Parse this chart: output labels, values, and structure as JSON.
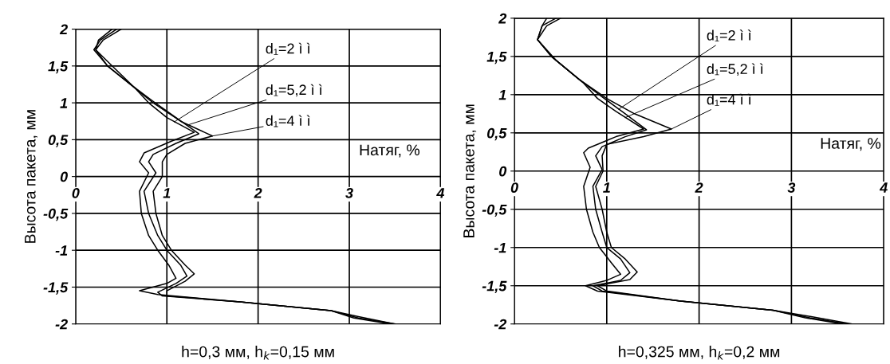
{
  "chart_data": [
    {
      "type": "line",
      "xlabel": "Натяг, %",
      "ylabel": "Высота пакета, мм",
      "xlim": [
        0,
        4
      ],
      "xticks": [
        0,
        1,
        2,
        3,
        4
      ],
      "ylim": [
        -2,
        2
      ],
      "yticks": [
        {
          "value": -2,
          "label": "-2"
        },
        {
          "value": -1.5,
          "label": "-1,5"
        },
        {
          "value": -1,
          "label": "-1"
        },
        {
          "value": -0.5,
          "label": "-0,5"
        },
        {
          "value": 0,
          "label": "0"
        },
        {
          "value": 0.5,
          "label": "0,5"
        },
        {
          "value": 1,
          "label": "1"
        },
        {
          "value": 1.5,
          "label": "1,5"
        },
        {
          "value": 2,
          "label": "2"
        }
      ],
      "grid": true,
      "marker": "none",
      "line_style": "solid",
      "series": [
        {
          "color": "#000000",
          "x": [
            0.5,
            0.3,
            0.22,
            0.35,
            0.6,
            0.85,
            1.15,
            1.5,
            1.2,
            1.0,
            0.95,
            0.95,
            0.85,
            0.88,
            0.95,
            1.05,
            1.2,
            1.3,
            1.2,
            1.0,
            1.0,
            1.8,
            2.8,
            3.1,
            3.5
          ],
          "values": [
            2,
            1.85,
            1.72,
            1.5,
            1.25,
            1.0,
            0.75,
            0.55,
            0.45,
            0.3,
            0.2,
            0.0,
            -0.2,
            -0.5,
            -0.8,
            -1.0,
            -1.2,
            -1.32,
            -1.42,
            -1.55,
            -1.62,
            -1.7,
            -1.82,
            -1.9,
            -2
          ]
        },
        {
          "color": "#000000",
          "x": [
            0.45,
            0.27,
            0.2,
            0.35,
            0.6,
            0.85,
            1.1,
            1.35,
            1.1,
            0.85,
            0.8,
            0.88,
            0.75,
            0.8,
            0.9,
            1.0,
            1.15,
            1.22,
            1.1,
            0.9,
            0.95,
            1.8,
            2.8,
            3.1,
            3.5
          ],
          "values": [
            2,
            1.85,
            1.72,
            1.5,
            1.25,
            1.02,
            0.8,
            0.58,
            0.45,
            0.3,
            0.2,
            0.05,
            -0.2,
            -0.5,
            -0.8,
            -1.0,
            -1.2,
            -1.35,
            -1.45,
            -1.57,
            -1.62,
            -1.7,
            -1.82,
            -1.92,
            -2
          ]
        },
        {
          "color": "#000000",
          "x": [
            0.4,
            0.25,
            0.22,
            0.4,
            0.65,
            0.8,
            1.0,
            1.3,
            1.05,
            0.75,
            0.7,
            0.8,
            0.7,
            0.72,
            0.8,
            0.9,
            1.02,
            1.1,
            1.0,
            0.7,
            0.9,
            1.8,
            2.8,
            3.05,
            3.45
          ],
          "values": [
            2,
            1.85,
            1.72,
            1.5,
            1.2,
            1.0,
            0.8,
            0.6,
            0.48,
            0.32,
            0.2,
            0.05,
            -0.2,
            -0.5,
            -0.8,
            -1.0,
            -1.2,
            -1.38,
            -1.45,
            -1.55,
            -1.6,
            -1.7,
            -1.82,
            -1.92,
            -2
          ]
        }
      ],
      "annotations": [
        {
          "text": "d₁=2 ì ì",
          "x": 1.08,
          "y": 0.74
        },
        {
          "text": "d₁=5,2 ì ì",
          "x": 1.23,
          "y": 0.7
        },
        {
          "text": "d₁=4 ì ì",
          "x": 1.5,
          "y": 0.55
        },
        "h=0,3 мм, h$_{k}$=0,15 мм"
      ]
    },
    {
      "type": "line",
      "xlabel": "Натяг, %",
      "ylabel": "Высота пакета, мм",
      "xlim": [
        0,
        4
      ],
      "xticks": [
        0,
        1,
        2,
        3,
        4
      ],
      "ylim": [
        -2,
        2
      ],
      "yticks": [
        {
          "value": -2,
          "label": "-2"
        },
        {
          "value": -1.5,
          "label": "-1,5"
        },
        {
          "value": -1,
          "label": "-1"
        },
        {
          "value": -0.5,
          "label": "-0,5"
        },
        {
          "value": 0,
          "label": "0"
        },
        {
          "value": 0.5,
          "label": "0,5"
        },
        {
          "value": 1,
          "label": "1"
        },
        {
          "value": 1.5,
          "label": "1,5"
        },
        {
          "value": 2,
          "label": "2"
        }
      ],
      "grid": true,
      "marker": "none",
      "line_style": "solid",
      "series": [
        {
          "color": "#000000",
          "x": [
            0.5,
            0.35,
            0.25,
            0.4,
            0.7,
            1.0,
            1.3,
            1.7,
            1.4,
            1.0,
            0.95,
            0.96,
            0.88,
            0.95,
            1.0,
            1.05,
            1.2,
            1.33,
            1.25,
            0.9,
            1.0,
            1.8,
            2.8,
            3.2,
            3.65
          ],
          "values": [
            2,
            1.9,
            1.72,
            1.5,
            1.2,
            0.95,
            0.75,
            0.55,
            0.45,
            0.35,
            0.2,
            0.0,
            -0.2,
            -0.5,
            -0.8,
            -1.0,
            -1.15,
            -1.32,
            -1.42,
            -1.5,
            -1.57,
            -1.7,
            -1.82,
            -1.9,
            -2
          ]
        },
        {
          "color": "#000000",
          "x": [
            0.45,
            0.3,
            0.25,
            0.4,
            0.7,
            0.95,
            1.2,
            1.43,
            1.2,
            0.95,
            0.88,
            0.95,
            0.85,
            0.88,
            0.95,
            1.0,
            1.15,
            1.25,
            1.15,
            0.85,
            0.95,
            1.8,
            2.8,
            3.2,
            3.6
          ],
          "values": [
            2,
            1.9,
            1.72,
            1.5,
            1.2,
            0.97,
            0.75,
            0.54,
            0.45,
            0.32,
            0.2,
            0.02,
            -0.2,
            -0.5,
            -0.8,
            -1.0,
            -1.15,
            -1.33,
            -1.43,
            -1.5,
            -1.57,
            -1.7,
            -1.82,
            -1.92,
            -2
          ]
        },
        {
          "color": "#000000",
          "x": [
            0.35,
            0.3,
            0.25,
            0.45,
            0.75,
            0.9,
            1.1,
            1.4,
            1.1,
            0.8,
            0.75,
            0.82,
            0.75,
            0.78,
            0.85,
            0.92,
            1.05,
            1.15,
            1.0,
            0.77,
            0.9,
            1.8,
            2.8,
            3.15,
            3.55
          ],
          "values": [
            2,
            1.9,
            1.72,
            1.45,
            1.15,
            0.95,
            0.78,
            0.55,
            0.45,
            0.3,
            0.24,
            0.05,
            -0.2,
            -0.5,
            -0.8,
            -1.0,
            -1.2,
            -1.35,
            -1.43,
            -1.5,
            -1.57,
            -1.7,
            -1.82,
            -1.92,
            -2
          ]
        }
      ],
      "annotations": [
        {
          "text": "d₁=2 ì ì",
          "x": 1.13,
          "y": 0.81
        },
        {
          "text": "d₁=5,2 ì ì",
          "x": 1.2,
          "y": 0.7
        },
        {
          "text": "d₁=4 ì ì",
          "x": 1.7,
          "y": 0.55
        },
        "h=0,325 мм, h$_{k}$=0,2 мм"
      ]
    }
  ]
}
